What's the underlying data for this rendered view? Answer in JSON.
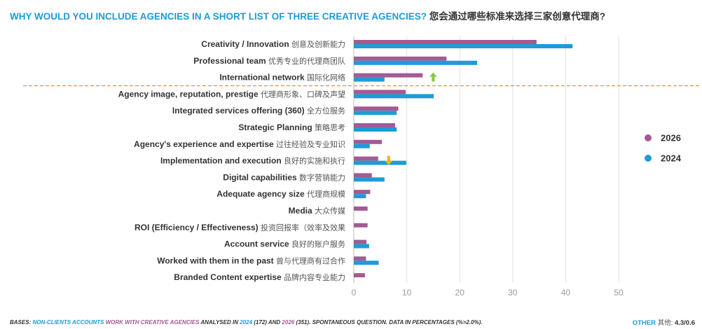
{
  "header": {
    "title_en": "WHY WOULD YOU INCLUDE AGENCIES IN A SHORT LIST OF THREE CREATIVE AGENCIES?",
    "title_zh": "您会通过哪些标准来选择三家创意代理商?"
  },
  "chart_data": {
    "type": "bar",
    "orientation": "horizontal",
    "categories": [
      "Creativity / Innovation",
      "Professional team",
      "International network",
      "Agency image, reputation, prestige",
      "Integrated services offering (360)",
      "Strategic Planning",
      "Agency's experience and expertise",
      "Implementation and execution",
      "Digital capabilities",
      "Adequate agency size",
      "Media",
      "ROI (Efficiency / Effectiveness)",
      "Account service",
      "Worked with them in the past",
      "Branded Content expertise"
    ],
    "categories_zh": [
      "创意及创新能力",
      "优秀专业的代理商团队",
      "国际化网络",
      "代理商形象、口碑及声望",
      "全方位服务",
      "策略思考",
      "过往经验及专业知识",
      "良好的实施和执行",
      "数字营销能力",
      "代理商规模",
      "大众传媒",
      "投资回报率（效率及效果",
      "良好的账户服务",
      "曾与代理商有过合作",
      "品牌内容专业能力"
    ],
    "series": [
      {
        "name": "2026",
        "color": "#a45a93",
        "values": [
          34.5,
          17.5,
          13.0,
          9.8,
          8.4,
          7.8,
          5.3,
          4.6,
          3.4,
          3.1,
          2.6,
          2.6,
          2.4,
          2.3,
          2.1
        ]
      },
      {
        "name": "2024",
        "color": "#1e9bd7",
        "values": [
          41.3,
          23.3,
          5.8,
          15.1,
          8.1,
          8.1,
          3.0,
          9.9,
          5.8,
          2.3,
          null,
          null,
          2.9,
          4.7,
          null
        ]
      }
    ],
    "x_ticks": [
      0,
      10,
      20,
      30,
      40,
      50
    ],
    "xlim": [
      0,
      50
    ],
    "grid": true,
    "legend": "right",
    "trend_markers": [
      {
        "category": "International network",
        "direction": "up",
        "color": "#8cc63f"
      },
      {
        "category": "Implementation and execution",
        "direction": "down",
        "color": "#f2b705"
      }
    ],
    "separator_after_category": "International network",
    "separator_color": "#f08a3c"
  },
  "footer": {
    "bases_label": "BASES:",
    "non_clients": "NON-CLIENTS ACCOUNTS",
    "work_with": "WORK WITH CREATIVE AGENCIES",
    "analysed_in": "ANALYSED IN",
    "year_2024": "2024",
    "n_2024": "(172) AND",
    "year_2026": "2026",
    "n_2026_rest": "(351). SPONTANEOUS QUESTION. DATA IN PERCENTAGES (%>2.0%).",
    "other_label": "OTHER",
    "other_zh": "其他:",
    "other_value": "4.3/0.6"
  }
}
